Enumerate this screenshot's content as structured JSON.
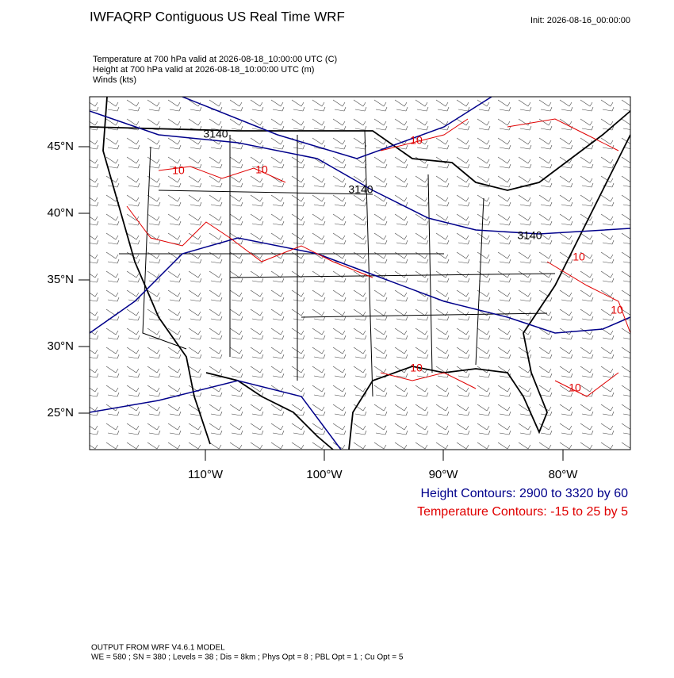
{
  "header": {
    "title": "IWFAQRP Contiguous US Real Time WRF",
    "init": "Init: 2026-08-16_00:00:00"
  },
  "fields": [
    "Temperature at 700 hPa valid at 2026-08-18_10:00:00 UTC   (C)",
    "Height at 700 hPa valid at 2026-08-18_10:00:00 UTC   (m)",
    "Winds   (kts)"
  ],
  "map": {
    "lat_labels": [
      "45°N",
      "40°N",
      "35°N",
      "30°N",
      "25°N"
    ],
    "lon_labels": [
      "110°W",
      "100°W",
      "90°W",
      "80°W"
    ],
    "height_contour_labels": [
      "3140",
      "3140",
      "3140"
    ],
    "temperature_contour_labels": [
      "10",
      "10",
      "10",
      "10",
      "10",
      "10",
      "10"
    ]
  },
  "legend": {
    "height": "Height Contours: 2900 to 3320 by 60",
    "temperature": "Temperature Contours: -15 to 25 by 5"
  },
  "footer": {
    "model": "OUTPUT FROM WRF V4.6.1 MODEL",
    "settings": "WE = 580 ; SN = 380 ; Levels = 38 ; Dis = 8km ; Phys Opt = 8 ; PBL Opt = 1 ; Cu Opt = 5"
  }
}
